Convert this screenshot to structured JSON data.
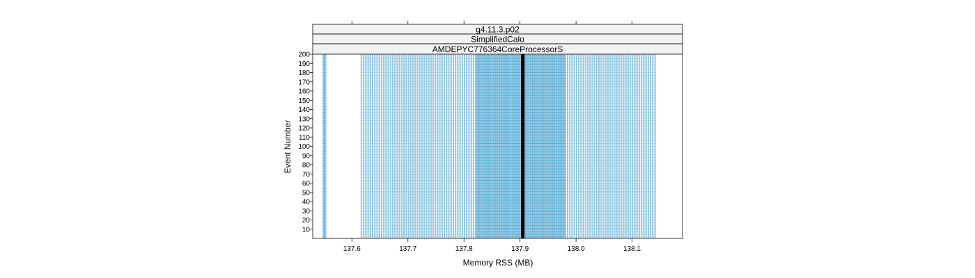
{
  "chart_data": {
    "type": "scatter",
    "strips": [
      "g4.11.3.p02",
      "SimplifiedCalo",
      "AMDEPYC776364CoreProcessorS"
    ],
    "xlabel": "Memory RSS (MB)",
    "ylabel": "Event Number",
    "xlim": [
      137.53,
      138.19
    ],
    "ylim": [
      0,
      200
    ],
    "x_ticks": [
      137.6,
      137.7,
      137.8,
      137.9,
      138.0,
      138.1
    ],
    "x_tick_labels": [
      "137.6",
      "137.7",
      "137.8",
      "137.9",
      "138.0",
      "138.1"
    ],
    "y_ticks": [
      10,
      20,
      30,
      40,
      50,
      60,
      70,
      80,
      90,
      100,
      110,
      120,
      130,
      140,
      150,
      160,
      170,
      180,
      190,
      200
    ],
    "y_tick_labels": [
      "10",
      "20",
      "30",
      "40",
      "50",
      "60",
      "70",
      "80",
      "90",
      "100",
      "110",
      "120",
      "130",
      "140",
      "150",
      "160",
      "170",
      "180",
      "190",
      "200"
    ],
    "point_color": "#0080c0",
    "reference_line": {
      "x": 137.905,
      "color": "#000000"
    },
    "grid": false,
    "point_groups": [
      {
        "x": [
          137.549,
          137.551,
          137.553
        ],
        "events": [
          1,
          200
        ]
      },
      {
        "x_range": [
          137.617,
          137.822
        ],
        "step": 0.004,
        "events": [
          1,
          200
        ]
      },
      {
        "x_range": [
          137.823,
          137.979
        ],
        "step": 0.002,
        "events": [
          1,
          200
        ]
      },
      {
        "x_range": [
          137.981,
          138.142
        ],
        "step": 0.004,
        "events": [
          1,
          200
        ]
      }
    ]
  }
}
